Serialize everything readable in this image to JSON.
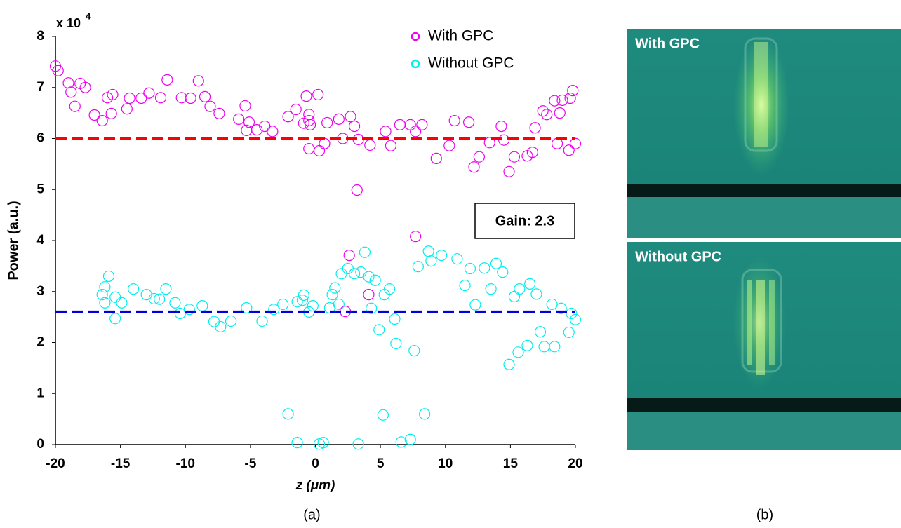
{
  "chart_data": {
    "type": "scatter",
    "y_scale_text": "x 10",
    "y_scale_exponent": "4",
    "xlabel": "z (μm)",
    "ylabel": "Power (a.u.)",
    "xlim": [
      -20,
      20
    ],
    "ylim": [
      0,
      8
    ],
    "xticks": [
      -20,
      -15,
      -10,
      -5,
      0,
      5,
      10,
      15,
      20
    ],
    "yticks": [
      0,
      1,
      2,
      3,
      4,
      5,
      6,
      7,
      8
    ],
    "legend": "top-right",
    "annotation": "Gain: 2.3",
    "panel_label": "(a)",
    "hlines": [
      {
        "value": 6.0,
        "color": "#ff0000"
      },
      {
        "value": 2.6,
        "color": "#0000dd"
      }
    ],
    "series": [
      {
        "name": "With GPC",
        "color": "#ee00ee",
        "x": [
          -20,
          -19.8,
          -19.0,
          -18.8,
          -18.5,
          -18.1,
          -17.7,
          -17.0,
          -16.4,
          -16.0,
          -15.6,
          -15.7,
          -14.5,
          -14.3,
          -13.4,
          -12.8,
          -11.9,
          -11.4,
          -10.3,
          -9.6,
          -9.0,
          -8.5,
          -8.1,
          -7.4,
          -5.9,
          -5.4,
          -5.1,
          -5.3,
          -4.5,
          -3.9,
          -3.3,
          -2.1,
          -1.5,
          -0.9,
          -0.7,
          -0.5,
          -0.5,
          -0.4,
          -0.5,
          0.2,
          0.3,
          0.7,
          0.9,
          1.8,
          2.1,
          2.7,
          3.0,
          3.2,
          3.3,
          4.2,
          5.4,
          5.8,
          6.5,
          7.3,
          7.7,
          8.2,
          9.3,
          10.3,
          10.7,
          11.8,
          12.2,
          12.6,
          13.4,
          14.3,
          14.5,
          14.9,
          15.3,
          16.3,
          16.7,
          16.9,
          17.5,
          17.8,
          18.4,
          18.8,
          19.0,
          19.6,
          19.8,
          20.0,
          19.5,
          18.6,
          2.6,
          4.1,
          7.7,
          2.3
        ],
        "values": [
          7.42,
          7.33,
          7.09,
          6.91,
          6.63,
          7.08,
          7.0,
          6.46,
          6.35,
          6.8,
          6.86,
          6.49,
          6.58,
          6.79,
          6.79,
          6.89,
          6.8,
          7.15,
          6.8,
          6.79,
          7.13,
          6.82,
          6.63,
          6.49,
          6.38,
          6.64,
          6.32,
          6.16,
          6.17,
          6.24,
          6.14,
          6.43,
          6.57,
          6.3,
          6.83,
          6.47,
          6.35,
          6.27,
          5.8,
          6.86,
          5.76,
          5.9,
          6.31,
          6.38,
          6.0,
          6.43,
          6.24,
          4.99,
          5.98,
          5.87,
          6.14,
          5.86,
          6.27,
          6.27,
          6.14,
          6.27,
          5.61,
          5.86,
          6.35,
          6.32,
          5.44,
          5.64,
          5.92,
          6.24,
          5.97,
          5.35,
          5.64,
          5.66,
          5.73,
          6.21,
          6.54,
          6.47,
          6.74,
          6.5,
          6.75,
          6.79,
          6.94,
          5.9,
          5.77,
          5.9,
          3.71,
          2.94,
          4.08,
          2.61
        ]
      },
      {
        "name": "Without GPC",
        "color": "#00eeee",
        "x": [
          -16.4,
          -16.2,
          -15.9,
          -16.2,
          -15.4,
          -14.9,
          -14.0,
          -13.0,
          -12.4,
          -11.5,
          -10.8,
          -10.4,
          -9.7,
          -8.7,
          -7.8,
          -7.3,
          -6.5,
          -5.3,
          -4.1,
          -3.2,
          -2.1,
          -1.4,
          -1.4,
          -1.0,
          -0.9,
          -0.2,
          0.3,
          0.6,
          1.1,
          1.3,
          1.5,
          2.0,
          2.5,
          3.0,
          3.3,
          3.5,
          3.8,
          4.1,
          4.3,
          4.6,
          4.9,
          5.3,
          5.2,
          6.1,
          6.2,
          6.6,
          7.3,
          7.6,
          7.9,
          8.4,
          8.7,
          9.7,
          10.9,
          11.5,
          11.9,
          12.3,
          13.0,
          13.5,
          13.9,
          14.4,
          14.9,
          15.3,
          15.7,
          15.6,
          16.3,
          16.5,
          17.3,
          17.6,
          18.2,
          18.4,
          18.9,
          19.5,
          19.7,
          20.0,
          -15.4,
          -12.0,
          -2.5,
          -0.5,
          1.8,
          5.7,
          8.9,
          17.0
        ],
        "values": [
          2.94,
          3.09,
          3.3,
          2.78,
          2.89,
          2.78,
          3.05,
          2.94,
          2.86,
          3.05,
          2.78,
          2.57,
          2.65,
          2.72,
          2.41,
          2.31,
          2.42,
          2.68,
          2.42,
          2.65,
          0.6,
          0.04,
          2.8,
          2.83,
          2.93,
          2.72,
          0.01,
          0.04,
          2.68,
          2.94,
          3.07,
          3.35,
          3.45,
          3.35,
          0.01,
          3.38,
          3.77,
          3.29,
          2.67,
          3.22,
          2.25,
          2.94,
          0.58,
          2.46,
          1.98,
          0.05,
          0.1,
          1.84,
          3.49,
          0.6,
          3.79,
          3.71,
          3.64,
          3.12,
          3.45,
          2.74,
          3.46,
          3.05,
          3.55,
          3.38,
          1.57,
          2.9,
          3.05,
          1.81,
          1.94,
          3.15,
          2.21,
          1.92,
          2.75,
          1.92,
          2.67,
          2.2,
          2.57,
          2.45,
          2.47,
          2.85,
          2.75,
          2.6,
          2.75,
          3.05,
          3.6,
          2.95
        ]
      }
    ]
  },
  "panel_b": {
    "label": "(b)",
    "top_caption": "With GPC",
    "bottom_caption": "Without GPC"
  }
}
